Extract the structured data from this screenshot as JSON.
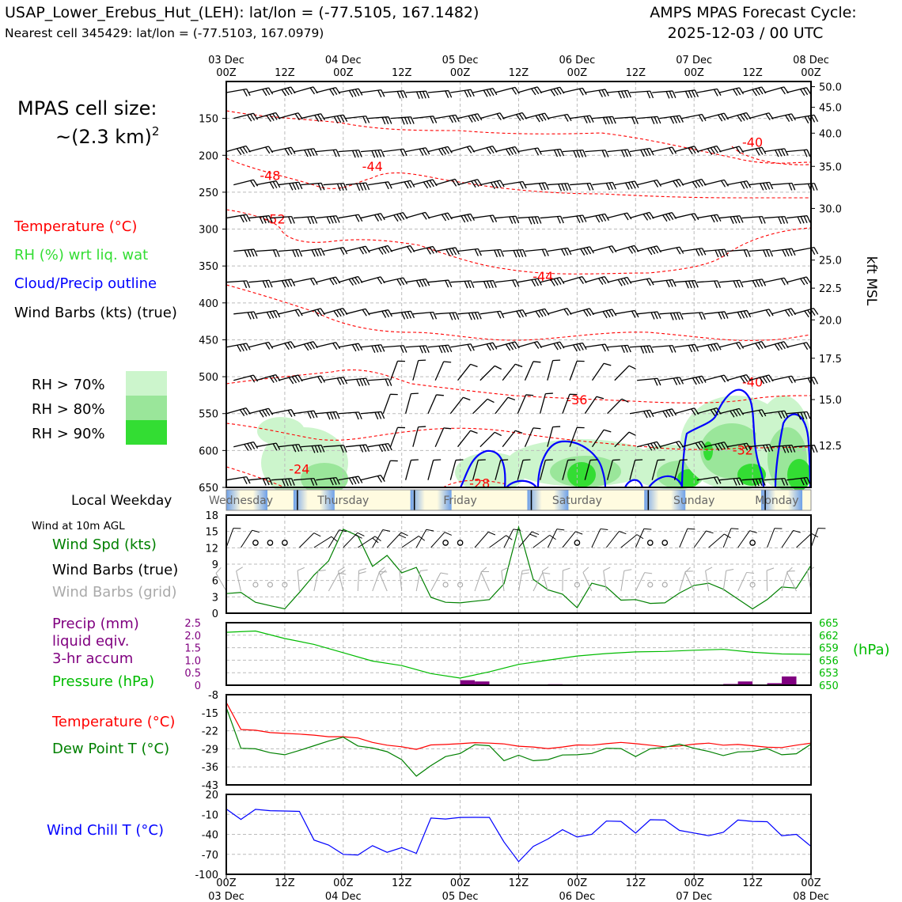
{
  "header": {
    "station_line": "USAP_Lower_Erebus_Hut_(LEH): lat/lon = (-77.5105, 167.1482)",
    "cell_line": "Nearest cell 345429: lat/lon = (-77.5103, 167.0979)",
    "cycle_title": "AMPS MPAS Forecast Cycle:",
    "cycle_value": "2025-12-03 / 00 UTC"
  },
  "cell_size": {
    "label": "MPAS cell size:",
    "value": "~(2.3 km)",
    "exponent": "2"
  },
  "legend_top": {
    "temperature": "Temperature (°C)",
    "rh": "RH (%) wrt liq. wat",
    "cloud": "Cloud/Precip outline",
    "barbs": "Wind Barbs (kts) (true)",
    "rh70": "RH > 70%",
    "rh80": "RH > 80%",
    "rh90": "RH > 90%"
  },
  "colors": {
    "temperature": "#ff0000",
    "rh_text": "#33dd33",
    "cloud": "#0000ff",
    "rh70": "#ccf5cc",
    "rh80": "#9ae69a",
    "rh90": "#33dd33",
    "wind_speed": "#008000",
    "grid_barbs": "#aaaaaa",
    "precip": "#800080",
    "pressure": "#00bb00",
    "dew_point": "#008000",
    "wind_chill": "#0000ff"
  },
  "x_axis": {
    "top_dates": [
      "03 Dec",
      "04 Dec",
      "05 Dec",
      "06 Dec",
      "07 Dec",
      "08 Dec"
    ],
    "hour_labels": [
      "00Z",
      "12Z",
      "00Z",
      "12Z",
      "00Z",
      "12Z",
      "00Z",
      "12Z",
      "00Z",
      "12Z",
      "00Z"
    ],
    "bottom_dates": [
      "03 Dec",
      "04 Dec",
      "05 Dec",
      "06 Dec",
      "07 Dec",
      "08 Dec"
    ]
  },
  "weekday": {
    "label": "Local Weekday",
    "days": [
      "Wednesday",
      "Thursday",
      "Friday",
      "Saturday",
      "Sunday",
      "Monday"
    ]
  },
  "chart_data": [
    {
      "type": "heatmap",
      "name": "upper-air cross-section",
      "x_hours": [
        0,
        120
      ],
      "y_pressure_hpa": [
        650,
        100
      ],
      "y_ticks": [
        150,
        200,
        250,
        300,
        350,
        400,
        450,
        500,
        550,
        600,
        650
      ],
      "y_right_label": "kft MSL",
      "y_right_ticks": [
        {
          "p": 107,
          "label": "50.0"
        },
        {
          "p": 135,
          "label": "45.0"
        },
        {
          "p": 170,
          "label": "40.0"
        },
        {
          "p": 215,
          "label": "35.0"
        },
        {
          "p": 272,
          "label": "30.0"
        },
        {
          "p": 342,
          "label": "25.0"
        },
        {
          "p": 380,
          "label": "22.5"
        },
        {
          "p": 423,
          "label": "20.0"
        },
        {
          "p": 475,
          "label": "17.5"
        },
        {
          "p": 531,
          "label": "15.0"
        },
        {
          "p": 593,
          "label": "12.5"
        }
      ],
      "temperature_labels": [
        {
          "text": "-48",
          "hour": 9,
          "p": 228
        },
        {
          "text": "-44",
          "hour": 30,
          "p": 216
        },
        {
          "text": "-52",
          "hour": 10,
          "p": 287
        },
        {
          "text": "-44",
          "hour": 65,
          "p": 365
        },
        {
          "text": "-36",
          "hour": 72,
          "p": 532
        },
        {
          "text": "-40",
          "hour": 108,
          "p": 183
        },
        {
          "text": "-40",
          "hour": 108,
          "p": 508
        },
        {
          "text": "-32",
          "hour": 106,
          "p": 600
        },
        {
          "text": "-24",
          "hour": 15,
          "p": 626
        },
        {
          "text": "-28",
          "hour": 52,
          "p": 645
        }
      ]
    },
    {
      "type": "line",
      "name": "wind at 10m",
      "title": "Wind at 10m AGL",
      "series_label": "Wind Spd (kts)",
      "barbs_label": "Wind Barbs (true)",
      "grid_barbs_label": "Wind Barbs (grid)",
      "ylim": [
        0,
        18
      ],
      "y_ticks": [
        0,
        3,
        6,
        9,
        12,
        15,
        18
      ],
      "x_hours": [
        0,
        3,
        6,
        9,
        12,
        15,
        18,
        21,
        24,
        27,
        30,
        33,
        36,
        39,
        42,
        45,
        48,
        51,
        54,
        57,
        60,
        63,
        66,
        69,
        72,
        75,
        78,
        81,
        84,
        87,
        90,
        93,
        96,
        99,
        102,
        105,
        108,
        111,
        114,
        117,
        120
      ],
      "wind_speed": [
        3.6,
        3.8,
        2.0,
        1.4,
        0.8,
        3.8,
        7.0,
        9.6,
        15.4,
        14.2,
        8.6,
        10.6,
        7.4,
        8.4,
        2.9,
        2.0,
        1.9,
        2.2,
        2.5,
        5.4,
        15.8,
        6.2,
        4.3,
        3.5,
        1.0,
        5.5,
        4.8,
        2.4,
        2.5,
        1.8,
        1.9,
        3.7,
        5.1,
        5.5,
        4.4,
        2.6,
        0.8,
        2.5,
        4.8,
        4.6,
        8.8
      ]
    },
    {
      "type": "line",
      "name": "precip and pressure",
      "precip_label_lines": [
        "Precip (mm)",
        "liquid eqiv.",
        "3-hr accum"
      ],
      "pressure_label": "Pressure (hPa)",
      "pressure_unit": "(hPa)",
      "precip_ylim": [
        0,
        2.5
      ],
      "precip_ticks": [
        "0",
        "0.5",
        "1.0",
        "1.5",
        "2.0",
        "2.5"
      ],
      "pressure_ylim": [
        650,
        665
      ],
      "pressure_ticks": [
        "650",
        "653",
        "656",
        "659",
        "662",
        "665"
      ],
      "pressure_hours": [
        0,
        6,
        12,
        18,
        24,
        30,
        36,
        42,
        48,
        54,
        60,
        66,
        72,
        78,
        84,
        90,
        96,
        102,
        108,
        114,
        120
      ],
      "pressure_hpa": [
        662.7,
        663.0,
        661.2,
        659.8,
        657.8,
        655.8,
        654.7,
        652.8,
        651.7,
        653.2,
        655.0,
        656.0,
        657.0,
        657.6,
        658.0,
        658.1,
        658.4,
        658.6,
        657.9,
        657.5,
        657.4
      ],
      "precip_bars": [
        {
          "hour": 51,
          "mm": 0.2
        },
        {
          "hour": 54,
          "mm": 0.15
        },
        {
          "hour": 69,
          "mm": 0.04
        },
        {
          "hour": 105,
          "mm": 0.05
        },
        {
          "hour": 108,
          "mm": 0.15
        },
        {
          "hour": 114,
          "mm": 0.08
        },
        {
          "hour": 117,
          "mm": 0.35
        }
      ]
    },
    {
      "type": "line",
      "name": "temperature and dew point",
      "temp_label": "Temperature (°C)",
      "dew_label": "Dew Point T (°C)",
      "ylim": [
        -43,
        -8
      ],
      "y_ticks": [
        "-8",
        "-15",
        "-22",
        "-29",
        "-36",
        "-43"
      ],
      "x_hours": [
        0,
        3,
        6,
        9,
        12,
        15,
        18,
        21,
        24,
        27,
        30,
        33,
        36,
        39,
        42,
        45,
        48,
        51,
        54,
        57,
        60,
        63,
        66,
        69,
        72,
        75,
        78,
        81,
        84,
        87,
        90,
        93,
        96,
        99,
        102,
        105,
        108,
        111,
        114,
        117,
        120
      ],
      "temperature": [
        -11,
        -21.5,
        -21.8,
        -22.7,
        -23.0,
        -23.3,
        -23.7,
        -24.3,
        -24.3,
        -24.8,
        -26.5,
        -27.6,
        -28.2,
        -29.2,
        -27.5,
        -27.3,
        -27.0,
        -26.6,
        -26.8,
        -27.1,
        -28.0,
        -28.3,
        -28.9,
        -28.3,
        -27.5,
        -27.6,
        -27.0,
        -26.5,
        -27.0,
        -27.6,
        -28.2,
        -27.9,
        -27.2,
        -26.8,
        -27.6,
        -27.3,
        -27.8,
        -28.4,
        -28.5,
        -27.6,
        -26.8
      ],
      "dew_point": [
        -13,
        -28.8,
        -29.0,
        -30.5,
        -31.3,
        -29.6,
        -27.8,
        -26.0,
        -24.5,
        -27.9,
        -28.7,
        -30.1,
        -33.2,
        -39.6,
        -35.5,
        -32.0,
        -30.8,
        -27.4,
        -27.8,
        -33.6,
        -31.5,
        -33.6,
        -33.2,
        -31.4,
        -31.3,
        -30.8,
        -28.8,
        -28.9,
        -32.0,
        -29.0,
        -28.4,
        -27.2,
        -28.8,
        -30.0,
        -31.6,
        -30.2,
        -30.0,
        -28.9,
        -31.3,
        -30.9,
        -27.2
      ]
    },
    {
      "type": "line",
      "name": "wind chill",
      "series_label": "Wind Chill T (°C)",
      "ylim": [
        -100,
        20
      ],
      "y_ticks": [
        "20",
        "-10",
        "-40",
        "-70",
        "-100"
      ],
      "x_hours": [
        0,
        3,
        6,
        9,
        12,
        15,
        18,
        21,
        24,
        27,
        30,
        33,
        36,
        39,
        42,
        45,
        48,
        51,
        54,
        57,
        60,
        63,
        66,
        69,
        72,
        75,
        78,
        81,
        84,
        87,
        90,
        93,
        96,
        99,
        102,
        105,
        108,
        111,
        114,
        117,
        120
      ],
      "wind_chill": [
        -2,
        -17.5,
        -2.5,
        -4.5,
        -5.0,
        -5.6,
        -48.5,
        -56.0,
        -70.0,
        -71.0,
        -57.0,
        -67.0,
        -60.0,
        -68.5,
        -15.5,
        -17.0,
        -14.6,
        -14.5,
        -14.6,
        -51.5,
        -81.0,
        -58.0,
        -47.0,
        -33.0,
        -44.0,
        -40.0,
        -20.0,
        -20.5,
        -38.0,
        -18.0,
        -18.5,
        -34.0,
        -38.0,
        -42.0,
        -37.0,
        -18.5,
        -20.5,
        -21.0,
        -42.0,
        -40.0,
        -58.0
      ]
    }
  ]
}
